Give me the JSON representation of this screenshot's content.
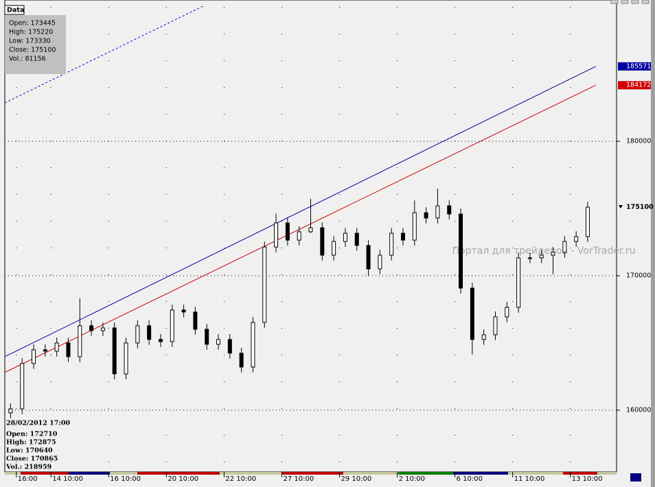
{
  "chart_data": {
    "type": "candlestick",
    "color": "#000000",
    "x": [
      1,
      3,
      5,
      7,
      9,
      11,
      13,
      15,
      17,
      19,
      21,
      23,
      25,
      27,
      29,
      31,
      33,
      35,
      37,
      39,
      41,
      43,
      45,
      47,
      49,
      51,
      53,
      55,
      57,
      59,
      61,
      63,
      65,
      67,
      69,
      71,
      73,
      75,
      77,
      79,
      81,
      83,
      85,
      87,
      89,
      91,
      93,
      95,
      97,
      99,
      101
    ],
    "open": [
      159800,
      160100,
      163470,
      164490,
      164390,
      165000,
      163980,
      166280,
      165920,
      166120,
      162700,
      165000,
      166280,
      165260,
      165100,
      167450,
      167300,
      166020,
      164900,
      165260,
      164240,
      163210,
      166530,
      172140,
      173930,
      172650,
      173270,
      173570,
      171530,
      172550,
      173160,
      172250,
      170510,
      171530,
      173160,
      172650,
      174690,
      174290,
      175200,
      174590,
      169080,
      165260,
      165610,
      166940,
      167650,
      171330,
      171330,
      171530,
      171740,
      172550,
      172910
    ],
    "high": [
      160500,
      163870,
      164890,
      164890,
      165400,
      165400,
      168320,
      166680,
      166520,
      166520,
      165400,
      166680,
      166680,
      165660,
      167850,
      167850,
      167700,
      166420,
      165660,
      165660,
      164640,
      166930,
      172540,
      174620,
      174330,
      173670,
      175720,
      173970,
      172950,
      173560,
      173560,
      172650,
      171930,
      173560,
      173560,
      175600,
      175090,
      176480,
      175600,
      174990,
      169480,
      166010,
      167340,
      168050,
      171730,
      171730,
      171930,
      172140,
      172950,
      173310,
      175500
    ],
    "low": [
      159400,
      159700,
      163070,
      163990,
      163990,
      163580,
      163580,
      165520,
      165520,
      162300,
      162300,
      164600,
      164860,
      164700,
      164700,
      166900,
      165620,
      164500,
      164500,
      163840,
      162810,
      162810,
      166130,
      171740,
      172250,
      172250,
      173170,
      171130,
      171130,
      172150,
      171850,
      170000,
      170110,
      171130,
      172250,
      172250,
      173890,
      173890,
      174190,
      168680,
      164140,
      164860,
      165210,
      166540,
      167250,
      170930,
      170930,
      170100,
      171340,
      172150,
      172510
    ],
    "close": [
      160100,
      163470,
      164490,
      164390,
      165000,
      163980,
      166280,
      165920,
      166120,
      162700,
      165000,
      166280,
      165260,
      165100,
      167450,
      167300,
      166020,
      164900,
      165260,
      164240,
      163210,
      166530,
      172140,
      173930,
      172650,
      173270,
      173570,
      171530,
      172550,
      173160,
      172250,
      170510,
      171530,
      173160,
      172650,
      174690,
      174290,
      175200,
      174590,
      169080,
      165260,
      165610,
      166940,
      167650,
      171330,
      171330,
      171530,
      171740,
      172550,
      172910,
      175100
    ],
    "xlim": [
      0,
      106
    ],
    "ylim": [
      155408,
      190510
    ],
    "yticks": [
      160000,
      170000,
      180000
    ],
    "xticks": [
      {
        "value": 2,
        "label": "16:00"
      },
      {
        "value": 8,
        "label": "14 10:00"
      },
      {
        "value": 18,
        "label": "16 10:00"
      },
      {
        "value": 28,
        "label": "20 10:00"
      },
      {
        "value": 38,
        "label": "22 10:00"
      },
      {
        "value": 48,
        "label": "27 10:00"
      },
      {
        "value": 58,
        "label": "29 10:00"
      },
      {
        "value": 68,
        "label": "2 10:00"
      },
      {
        "value": 78,
        "label": "6 10:00"
      },
      {
        "value": 88,
        "label": "11 10:00"
      },
      {
        "value": 98,
        "label": "13 10:00"
      }
    ],
    "grid": true,
    "lines": [
      {
        "color": "#0000a0",
        "x": [
          0,
          102.4
        ],
        "values": [
          163980,
          185571
        ],
        "label_box": true
      },
      {
        "color": "#d00000",
        "x": [
          0,
          102.4
        ],
        "values": [
          162806,
          184172
        ],
        "label_box": true
      },
      {
        "color": "#0000c0",
        "x": [
          0,
          34.6
        ],
        "values": [
          182857,
          190102
        ],
        "dashed": true
      }
    ],
    "price_label": 175100,
    "info_top": {
      "title": "Data",
      "lines": [
        "Open: 173445",
        "High: 175220",
        "Low: 173330",
        "Close: 175100",
        "Vol.: 81156"
      ]
    },
    "info_bottom": {
      "title": "28/02/2012 17:00",
      "lines": [
        "Open: 172710",
        "High: 172875",
        "Low: 170640",
        "Close: 170865",
        "Vol.: 218959"
      ]
    },
    "watermark": "Портал для трейдеров - VorTrader.ru"
  }
}
